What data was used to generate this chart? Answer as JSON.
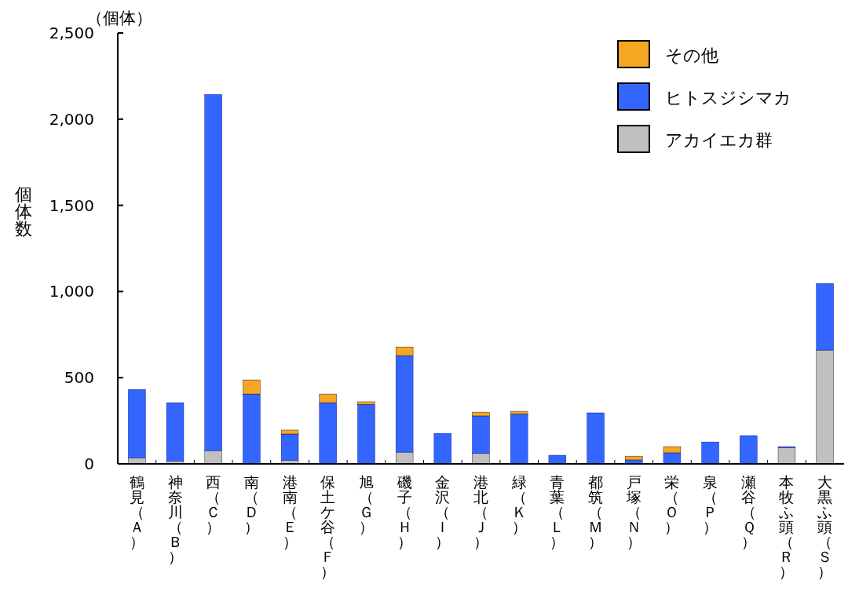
{
  "chart_data": {
    "type": "bar",
    "stacked": true,
    "ylabel": "個体数",
    "annotations": [
      "（個体）"
    ],
    "categories": [
      "鶴見（Ａ）",
      "神奈川（Ｂ）",
      "西（Ｃ）",
      "南（Ｄ）",
      "港南（Ｅ）",
      "保土ケ谷（Ｆ）",
      "旭（Ｇ）",
      "磯子（Ｈ）",
      "金沢（Ｉ）",
      "港北（Ｊ）",
      "緑（Ｋ）",
      "青葉（Ｌ）",
      "都筑（Ｍ）",
      "戸塚（Ｎ）",
      "栄（Ｏ）",
      "泉（Ｐ）",
      "瀬谷（Ｑ）",
      "本牧ふ頭（Ｒ）",
      "大黒ふ頭（Ｓ）"
    ],
    "series": [
      {
        "name": "アカイエカ群",
        "color": "#c0c0c0",
        "values": [
          35,
          15,
          77,
          0,
          20,
          0,
          0,
          68,
          0,
          60,
          0,
          0,
          0,
          0,
          0,
          0,
          0,
          95,
          660
        ]
      },
      {
        "name": "ヒトスジシマカ",
        "color": "#3366ff",
        "values": [
          397,
          340,
          2066,
          405,
          153,
          355,
          345,
          560,
          177,
          218,
          290,
          50,
          296,
          23,
          64,
          127,
          164,
          5,
          387
        ]
      },
      {
        "name": "その他",
        "color": "#f5a623",
        "values": [
          0,
          0,
          0,
          82,
          23,
          50,
          15,
          50,
          0,
          22,
          15,
          0,
          0,
          22,
          36,
          0,
          0,
          0,
          0
        ]
      }
    ],
    "ylim": [
      0,
      2500
    ],
    "yticks": [
      0,
      500,
      {
        "value": 1000,
        "label": "1,000"
      },
      {
        "value": 1500,
        "label": "1,500"
      },
      {
        "value": 2000,
        "label": "2,000"
      },
      {
        "value": 2500,
        "label": "2,500"
      }
    ],
    "legend": "top right",
    "grid": false
  }
}
